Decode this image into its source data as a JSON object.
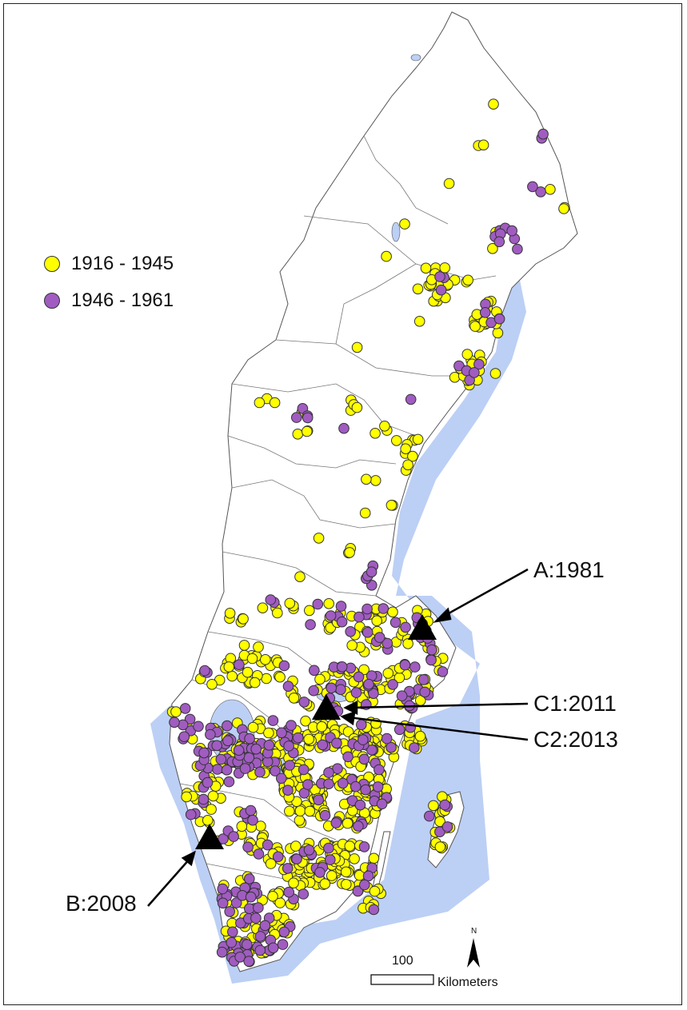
{
  "legend": [
    {
      "label": "1916 - 1945",
      "color": "#ffff00"
    },
    {
      "label": "1946 - 1961",
      "color": "#a05cc0"
    }
  ],
  "sites": [
    {
      "label": "A:1981"
    },
    {
      "label": "C1:2011"
    },
    {
      "label": "C2:2013"
    },
    {
      "label": "B:2008"
    }
  ],
  "scale": {
    "value": "100",
    "unit": "Kilometers"
  },
  "north": "N",
  "colors": {
    "sea": "#bccff5",
    "land": "#ffffff",
    "border": "#555555",
    "marker": "#000000"
  }
}
